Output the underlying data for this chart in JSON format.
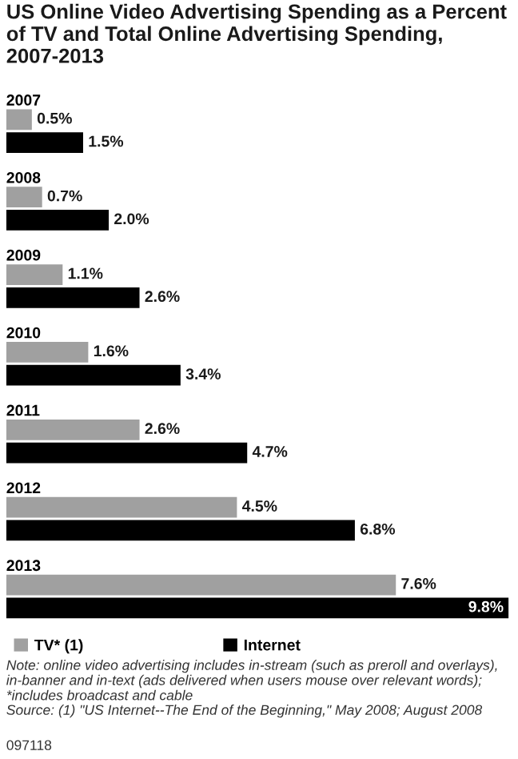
{
  "chart_data": {
    "type": "bar",
    "orientation": "horizontal",
    "title": "US Online Video Advertising Spending as a Percent of TV and Total Online Advertising Spending, 2007-2013",
    "categories": [
      "2007",
      "2008",
      "2009",
      "2010",
      "2011",
      "2012",
      "2013"
    ],
    "series": [
      {
        "name": "TV* (1)",
        "color": "#a0a0a0",
        "values": [
          0.5,
          0.7,
          1.1,
          1.6,
          2.6,
          4.5,
          7.6
        ],
        "value_labels": [
          "0.5%",
          "0.7%",
          "1.1%",
          "1.6%",
          "2.6%",
          "4.5%",
          "7.6%"
        ]
      },
      {
        "name": "Internet",
        "color": "#000000",
        "values": [
          1.5,
          2.0,
          2.6,
          3.4,
          4.7,
          6.8,
          9.8
        ],
        "value_labels": [
          "1.5%",
          "2.0%",
          "2.6%",
          "3.4%",
          "4.7%",
          "6.8%",
          "9.8%"
        ]
      }
    ],
    "legend": "bottom",
    "annotations": [
      "Note: online video advertising includes in-stream (such as preroll and overlays), in-banner and in-text (ads delivered when users mouse over relevant words); *includes broadcast and cable",
      "Source: (1) \"US Internet--The End of the Beginning,\" May 2008; August 2008",
      "097118"
    ]
  }
}
